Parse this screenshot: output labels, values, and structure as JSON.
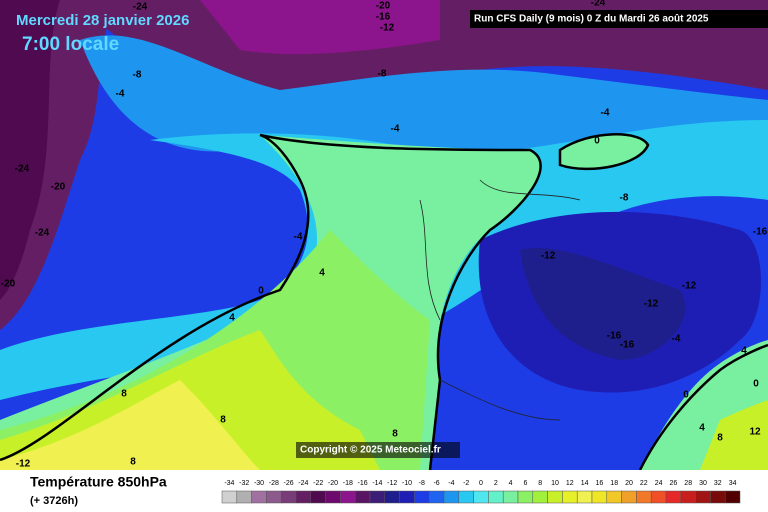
{
  "header": {
    "date": "Mercredi 28 janvier 2026",
    "time": "7:00 locale",
    "run": "Run CFS Daily (9 mois) 0 Z du Mardi 26 août 2025"
  },
  "copyright": "Copyright © 2025 Meteociel.fr",
  "footer": {
    "title": "Température 850hPa",
    "lead": "(+ 3726h)"
  },
  "contour_labels": [
    -24,
    -20,
    -16,
    -12,
    -24,
    -8,
    -4,
    -8,
    -4,
    -4,
    0,
    -8,
    -24,
    -20,
    -24,
    -20,
    -4,
    4,
    0,
    4,
    -12,
    -12,
    -12,
    -16,
    -16,
    -16,
    -4,
    4,
    0,
    0,
    8,
    8,
    8,
    4,
    8,
    12,
    -12,
    8
  ],
  "legend": {
    "values": [
      -34,
      -32,
      -30,
      -28,
      -26,
      -24,
      -22,
      -20,
      -18,
      -16,
      -14,
      -12,
      -10,
      -8,
      -6,
      -4,
      -2,
      0,
      2,
      4,
      6,
      8,
      10,
      12,
      14,
      16,
      18,
      20,
      22,
      24,
      26,
      28,
      30,
      32,
      34
    ],
    "colors": [
      "#d0d0d0",
      "#b0b0b0",
      "#a070a0",
      "#8c5a8c",
      "#783c78",
      "#641e64",
      "#500a50",
      "#6e0a6e",
      "#8c148c",
      "#5a1464",
      "#3c1e78",
      "#1e1e8c",
      "#1e1eb4",
      "#1e3ce6",
      "#1e64f0",
      "#1e96f0",
      "#28c8f0",
      "#50e6f0",
      "#64f0c8",
      "#78f0a0",
      "#8cf064",
      "#a0f03c",
      "#c8f028",
      "#e6f028",
      "#f0f050",
      "#f0e628",
      "#f0c828",
      "#f0a028",
      "#f07828",
      "#f05028",
      "#e62828",
      "#c81e1e",
      "#a01414",
      "#780a0a",
      "#500000"
    ]
  }
}
